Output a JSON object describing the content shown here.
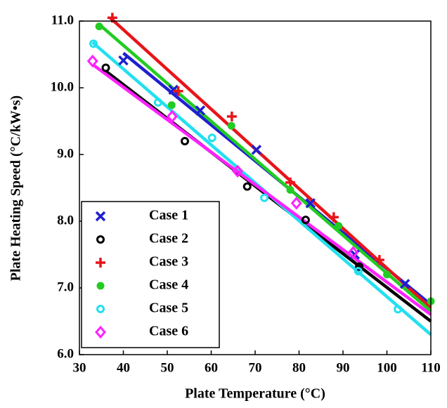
{
  "chart_data": {
    "type": "scatter",
    "x_label": "Plate Temperature (°C)",
    "y_label": "Plate Heating Speed (°C/kW•s)",
    "xlim": [
      30,
      110
    ],
    "xticks": [
      30,
      40,
      50,
      60,
      70,
      80,
      90,
      100,
      110
    ],
    "ylim": [
      6,
      11
    ],
    "yticks": [
      {
        "value": 6,
        "label": "6.0"
      },
      {
        "value": 7,
        "label": "7.0"
      },
      {
        "value": 8,
        "label": "8.0"
      },
      {
        "value": 9,
        "label": "9.0"
      },
      {
        "value": 10,
        "label": "10.0"
      },
      {
        "value": 11,
        "label": "11.0"
      }
    ],
    "legend": "lower-left",
    "series": [
      {
        "name": "Case 1",
        "color": "#1f1fd0",
        "marker": "x",
        "x": [
          40,
          51.4,
          57.5,
          70.3,
          82.6,
          92.7,
          104.1
        ],
        "values": [
          10.41,
          9.97,
          9.66,
          9.07,
          8.27,
          7.5,
          7.06
        ],
        "fit_x": [
          40,
          110
        ],
        "fit_y": [
          10.52,
          6.75
        ]
      },
      {
        "name": "Case 2",
        "color": "#000000",
        "marker": "ring",
        "x": [
          36,
          54,
          68.2,
          81.5,
          93.7
        ],
        "values": [
          10.3,
          9.2,
          8.52,
          8.02,
          7.32
        ],
        "fit_x": [
          36,
          110
        ],
        "fit_y": [
          10.25,
          6.5
        ]
      },
      {
        "name": "Case 3",
        "color": "#e8141a",
        "marker": "plus",
        "x": [
          37.5,
          52.5,
          64.7,
          78,
          87.9,
          98.3
        ],
        "values": [
          11.05,
          9.95,
          9.57,
          8.58,
          8.06,
          7.42
        ],
        "fit_x": [
          37,
          110
        ],
        "fit_y": [
          11.05,
          6.7
        ]
      },
      {
        "name": "Case 4",
        "color": "#22cc22",
        "marker": "dot",
        "x": [
          34.5,
          51,
          64.6,
          78,
          89,
          100,
          110
        ],
        "values": [
          10.92,
          9.74,
          9.43,
          8.47,
          7.93,
          7.2,
          6.8
        ],
        "fit_x": [
          34.5,
          110
        ],
        "fit_y": [
          10.95,
          6.65
        ]
      },
      {
        "name": "Case 5",
        "color": "#22e0f0",
        "marker": "ring",
        "x": [
          33.2,
          47.9,
          60.2,
          72.1,
          93.5,
          102.5
        ],
        "values": [
          10.66,
          9.78,
          9.25,
          8.35,
          7.25,
          6.68
        ],
        "fit_x": [
          33,
          110
        ],
        "fit_y": [
          10.68,
          6.3
        ]
      },
      {
        "name": "Case 6",
        "color": "#ff22ff",
        "marker": "diamond",
        "x": [
          33,
          51.1,
          66,
          79.4,
          92.3
        ],
        "values": [
          10.4,
          9.57,
          8.75,
          8.27,
          7.53
        ],
        "fit_x": [
          33,
          110
        ],
        "fit_y": [
          10.35,
          6.6
        ]
      }
    ]
  }
}
